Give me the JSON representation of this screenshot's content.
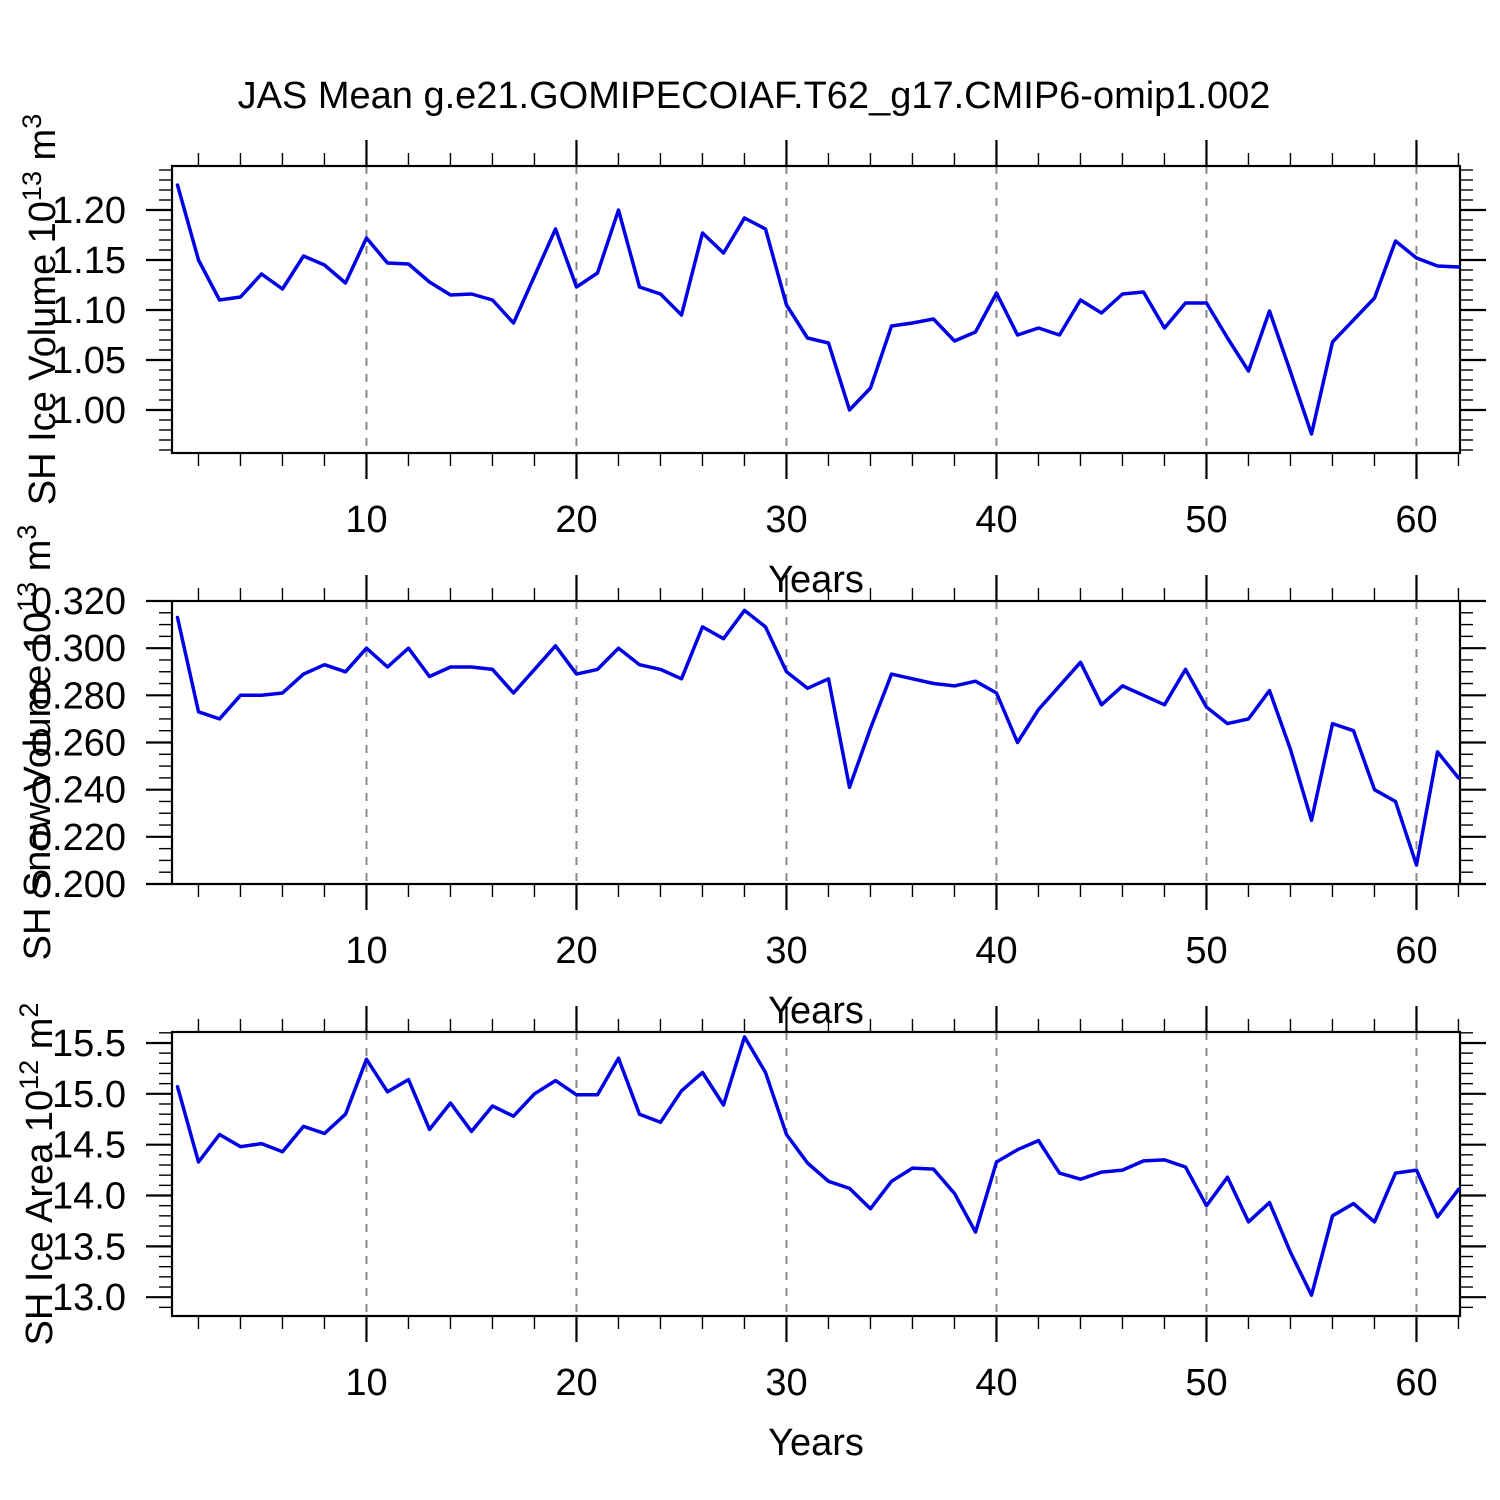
{
  "title": "JAS Mean g.e21.GOMIPECOIAF.T62_g17.CMIP6-omip1.002",
  "colors": {
    "line": "#0000e6",
    "grid": "#8a8a8a",
    "axis": "#000000"
  },
  "x_axis": {
    "label": "Years",
    "tick_years": [
      10,
      20,
      30,
      40,
      50,
      60
    ],
    "tick_labels": [
      "10",
      "20",
      "30",
      "40",
      "50",
      "60"
    ],
    "minor_step_years": 2,
    "years_start": 1,
    "years_end": 62
  },
  "chart_data": [
    {
      "type": "line",
      "name": "sh-ice-volume",
      "ylabel_plain": "SH Ice Volume 10^13 m^3",
      "ylabel": {
        "t1": "SH Ice Volume 10",
        "s1": "13",
        "t2": " m",
        "s2": "3"
      },
      "xlabel": "Years",
      "ylim": [
        0.957,
        1.244
      ],
      "ytick_values": [
        1.0,
        1.05,
        1.1,
        1.15,
        1.2
      ],
      "ytick_labels": [
        "1.00",
        "1.05",
        "1.10",
        "1.15",
        "1.20"
      ],
      "yminor_step": 0.01,
      "x_years_1_to_62": true,
      "values": [
        1.225,
        1.15,
        1.11,
        1.113,
        1.136,
        1.121,
        1.154,
        1.145,
        1.127,
        1.172,
        1.147,
        1.146,
        1.128,
        1.115,
        1.116,
        1.11,
        1.087,
        1.134,
        1.181,
        1.123,
        1.137,
        1.2,
        1.123,
        1.116,
        1.095,
        1.177,
        1.157,
        1.192,
        1.181,
        1.105,
        1.072,
        1.067,
        1.0,
        1.022,
        1.084,
        1.087,
        1.091,
        1.069,
        1.078,
        1.117,
        1.075,
        1.082,
        1.075,
        1.11,
        1.097,
        1.116,
        1.118,
        1.082,
        1.107,
        1.107,
        1.072,
        1.039,
        1.099,
        1.038,
        0.976,
        1.068,
        1.09,
        1.112,
        1.169,
        1.152,
        1.144,
        1.143
      ]
    },
    {
      "type": "line",
      "name": "sh-snow-volume",
      "ylabel_plain": "SH Snow Volume 10^13 m^3",
      "ylabel": {
        "t1": "SH Snow Volume 10",
        "s1": "13",
        "t2": " m",
        "s2": "3"
      },
      "xlabel": "Years",
      "ylim": [
        0.2,
        0.32
      ],
      "ytick_values": [
        0.2,
        0.22,
        0.24,
        0.26,
        0.28,
        0.3,
        0.32
      ],
      "ytick_labels": [
        "0.200",
        "0.220",
        "0.240",
        "0.260",
        "0.280",
        "0.300",
        "0.320"
      ],
      "yminor_step": 0.005,
      "x_years_1_to_62": true,
      "values": [
        0.313,
        0.273,
        0.27,
        0.28,
        0.28,
        0.281,
        0.289,
        0.293,
        0.29,
        0.3,
        0.292,
        0.3,
        0.288,
        0.292,
        0.292,
        0.291,
        0.281,
        0.291,
        0.301,
        0.289,
        0.291,
        0.3,
        0.293,
        0.291,
        0.287,
        0.309,
        0.304,
        0.316,
        0.309,
        0.29,
        0.283,
        0.287,
        0.241,
        0.266,
        0.289,
        0.287,
        0.285,
        0.284,
        0.286,
        0.281,
        0.26,
        0.274,
        0.284,
        0.294,
        0.276,
        0.284,
        0.28,
        0.276,
        0.291,
        0.275,
        0.268,
        0.27,
        0.282,
        0.257,
        0.227,
        0.268,
        0.265,
        0.24,
        0.235,
        0.208,
        0.256,
        0.245
      ]
    },
    {
      "type": "line",
      "name": "sh-ice-area",
      "ylabel_plain": "SH Ice Area 10^12 m^2",
      "ylabel": {
        "t1": "SH Ice Area 10",
        "s1": "12",
        "t2": " m",
        "s2": "2"
      },
      "xlabel": "Years",
      "ylim": [
        12.815,
        15.608
      ],
      "ytick_values": [
        13.0,
        13.5,
        14.0,
        14.5,
        15.0,
        15.5
      ],
      "ytick_labels": [
        "13.0",
        "13.5",
        "14.0",
        "14.5",
        "15.0",
        "15.5"
      ],
      "yminor_step": 0.1,
      "x_years_1_to_62": true,
      "values": [
        15.07,
        14.33,
        14.6,
        14.48,
        14.51,
        14.43,
        14.68,
        14.61,
        14.8,
        15.34,
        15.02,
        15.14,
        14.65,
        14.91,
        14.63,
        14.88,
        14.78,
        15.0,
        15.13,
        14.99,
        14.99,
        15.35,
        14.8,
        14.72,
        15.03,
        15.21,
        14.89,
        15.56,
        15.21,
        14.6,
        14.32,
        14.14,
        14.07,
        13.87,
        14.14,
        14.27,
        14.26,
        14.02,
        13.64,
        14.33,
        14.45,
        14.54,
        14.22,
        14.16,
        14.23,
        14.25,
        14.34,
        14.35,
        14.28,
        13.9,
        14.18,
        13.74,
        13.93,
        13.44,
        13.02,
        13.8,
        13.92,
        13.74,
        14.22,
        14.25,
        13.79,
        14.06
      ]
    }
  ]
}
